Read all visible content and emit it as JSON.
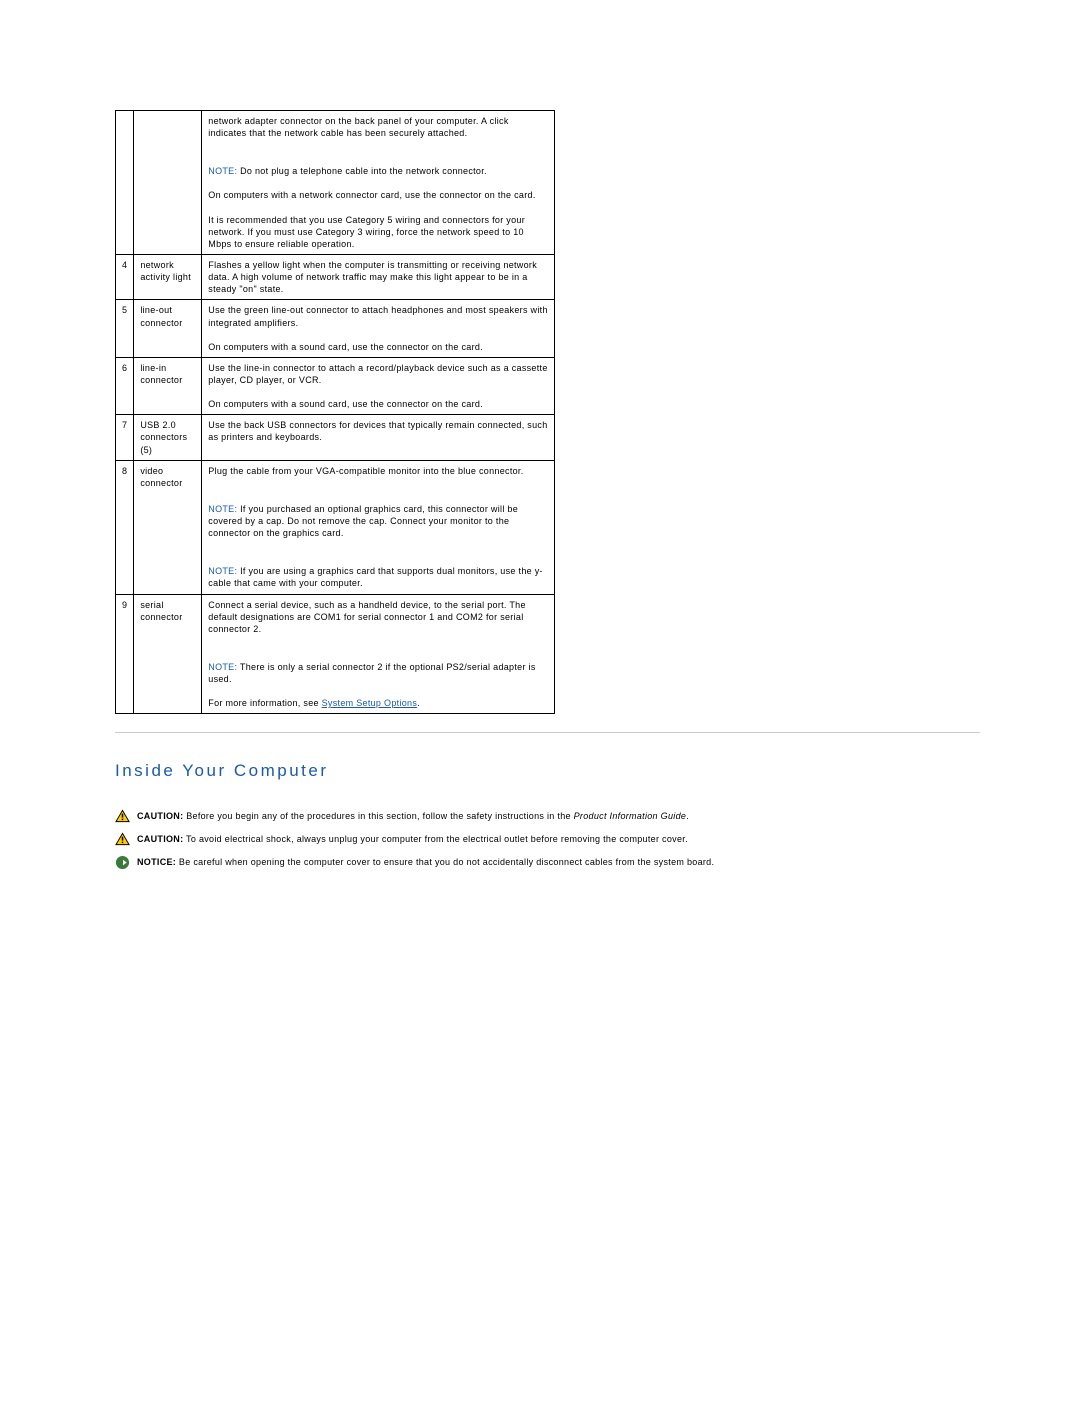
{
  "colors": {
    "accent": "#1a5aa8",
    "border": "#000000",
    "divider": "#cccccc",
    "text": "#000000",
    "caution_triangle_fill": "#ffcc00",
    "caution_triangle_stroke": "#000000",
    "notice_circle_fill": "#3a7a3a",
    "notice_arrow": "#ffffff"
  },
  "table": {
    "rows": [
      {
        "num": "",
        "name": "",
        "desc": [
          {
            "type": "plain",
            "text": "network adapter connector on the back panel of your computer. A click indicates that the network cable has been securely attached."
          },
          {
            "type": "note",
            "label": "NOTE:",
            "text": " Do not plug a telephone cable into the network connector."
          },
          {
            "type": "plain",
            "text": "On computers with a network connector card, use the connector on the card."
          },
          {
            "type": "plain",
            "text": "It is recommended that you use Category 5 wiring and connectors for your network. If you must use Category 3 wiring, force the network speed to 10 Mbps to ensure reliable operation."
          }
        ]
      },
      {
        "num": "4",
        "name": "network activity light",
        "desc": [
          {
            "type": "plain",
            "text": "Flashes a yellow light when the computer is transmitting or receiving network data. A high volume of network traffic may make this light appear to be in a steady \"on\" state."
          }
        ]
      },
      {
        "num": "5",
        "name": "line-out connector",
        "desc": [
          {
            "type": "plain",
            "text": "Use the green line-out connector to attach headphones and most speakers with integrated amplifiers."
          },
          {
            "type": "plain",
            "text": "On computers with a sound card, use the connector on the card."
          }
        ]
      },
      {
        "num": "6",
        "name": "line-in connector",
        "desc": [
          {
            "type": "plain",
            "text": "Use the line-in connector to attach a record/playback device such as a cassette player, CD player, or VCR."
          },
          {
            "type": "plain",
            "text": "On computers with a sound card, use the connector on the card."
          }
        ]
      },
      {
        "num": "7",
        "name": "USB 2.0 connectors (5)",
        "desc": [
          {
            "type": "plain",
            "text": "Use the back USB connectors for devices that typically remain connected, such as printers and keyboards."
          }
        ]
      },
      {
        "num": "8",
        "name": "video connector",
        "desc": [
          {
            "type": "plain",
            "text": "Plug the cable from your VGA-compatible monitor into the blue connector."
          },
          {
            "type": "note",
            "label": "NOTE:",
            "text": " If you purchased an optional graphics card, this connector will be covered by a cap. Do not remove the cap. Connect your monitor to the connector on the graphics card."
          },
          {
            "type": "note",
            "label": "NOTE:",
            "text": " If you are using a graphics card that supports dual monitors, use the y-cable that came with your computer."
          }
        ]
      },
      {
        "num": "9",
        "name": "serial connector",
        "desc": [
          {
            "type": "plain",
            "text": "Connect a serial device, such as a handheld device, to the serial port. The default designations are COM1 for serial connector 1 and COM2 for serial connector 2."
          },
          {
            "type": "note",
            "label": "NOTE:",
            "text": " There is only a serial connector 2 if the optional PS2/serial adapter is used."
          },
          {
            "type": "link",
            "prefix": "For more information, see ",
            "link_text": "System Setup Options",
            "suffix": "."
          }
        ]
      }
    ]
  },
  "section": {
    "heading": "Inside Your Computer",
    "alerts": [
      {
        "icon": "caution",
        "label": "CAUTION:",
        "text_before": " Before you begin any of the procedures in this section, follow the safety instructions in the ",
        "italic": "Product Information Guide",
        "text_after": "."
      },
      {
        "icon": "caution",
        "label": "CAUTION:",
        "text_before": " To avoid electrical shock, always unplug your computer from the electrical outlet before removing the computer cover.",
        "italic": "",
        "text_after": ""
      },
      {
        "icon": "notice",
        "label": "NOTICE:",
        "text_before": " Be careful when opening the computer cover to ensure that you do not accidentally disconnect cables from the system board.",
        "italic": "",
        "text_after": ""
      }
    ]
  }
}
